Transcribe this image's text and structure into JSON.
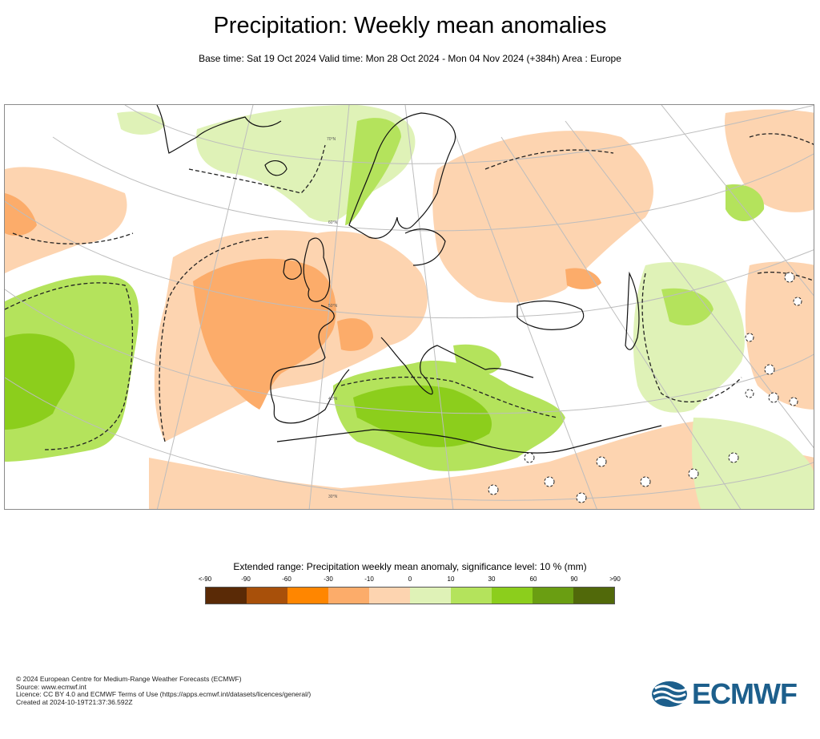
{
  "header": {
    "title": "Precipitation: Weekly mean anomalies",
    "subtitle": "Base time: Sat 19 Oct 2024 Valid time: Mon 28 Oct 2024 - Mon 04 Nov 2024 (+384h) Area : Europe"
  },
  "map": {
    "area": "Europe",
    "significance_contours": "dashed",
    "latitude_labels": [
      "70°N",
      "60°N",
      "50°N",
      "40°N",
      "30°N"
    ]
  },
  "legend": {
    "title": "Extended range: Precipitation weekly mean anomaly, significance level: 10 % (mm)",
    "ticks": [
      "<-90",
      "-90",
      "-60",
      "-30",
      "-10",
      "0",
      "10",
      "30",
      "60",
      "90",
      ">90"
    ],
    "colors": [
      "#5a2a06",
      "#a8500a",
      "#ff8600",
      "#fcac6a",
      "#fdd4b0",
      "#dff2b7",
      "#b4e35c",
      "#8cce1c",
      "#6a9e12",
      "#51690a"
    ]
  },
  "credits": {
    "line1": "© 2024 European Centre for Medium-Range Weather Forecasts (ECMWF)",
    "line2": "Source: www.ecmwf.int",
    "line3": "Licence: CC BY 4.0 and ECMWF Terms of Use (https://apps.ecmwf.int/datasets/licences/general/)",
    "line4": "Created at 2024-10-19T21:37:36.592Z"
  },
  "logo": {
    "text": "ECMWF",
    "color": "#1d5f8c"
  }
}
